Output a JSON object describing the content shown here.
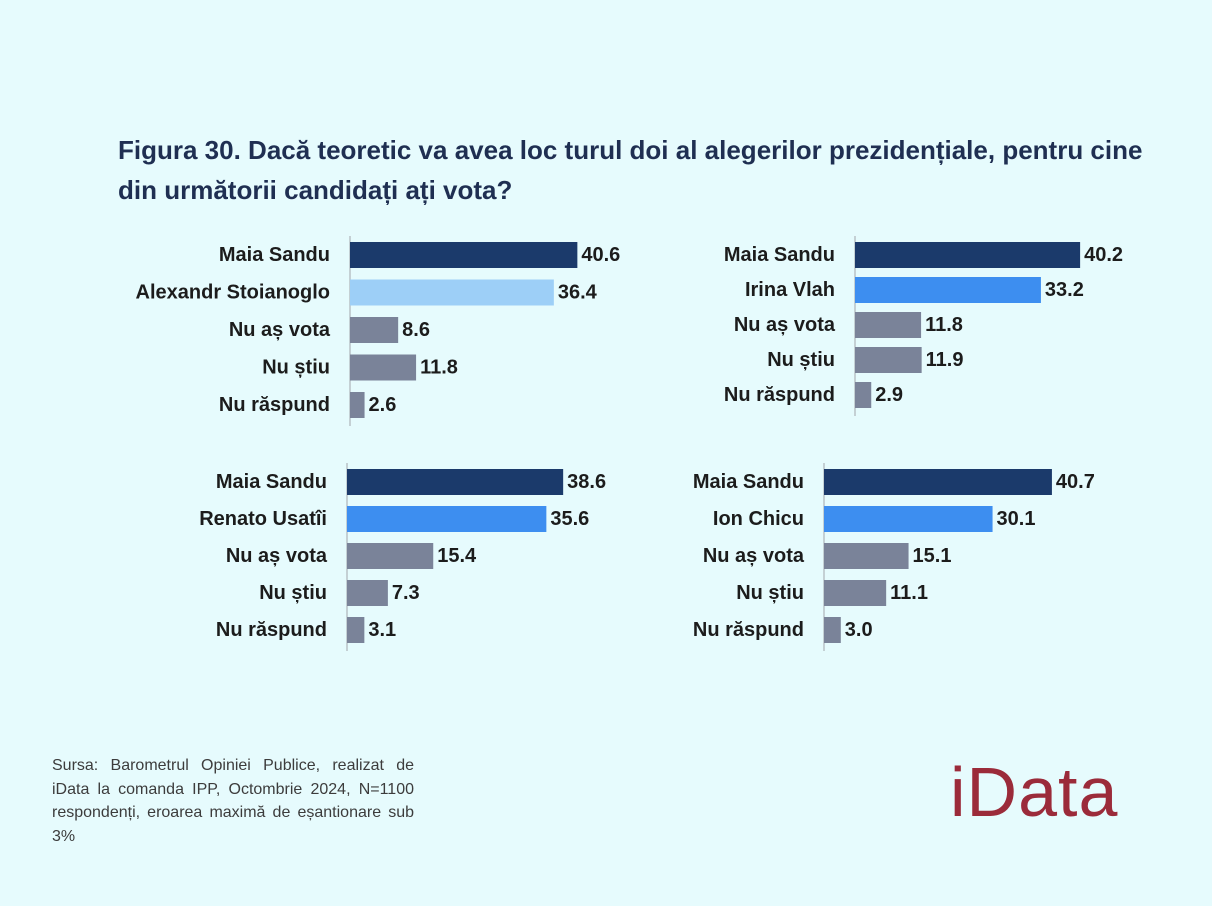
{
  "title": "Figura 30. Dacă teoretic va avea loc turul doi al alegerilor prezidențiale, pentru cine din următorii candidați ați vota?",
  "source_note": "Sursa: Barometrul Opiniei Publice, realizat de iData la comanda IPP, Octombrie 2024, N=1100 respondenți, eroarea maximă de eșantionare sub 3%",
  "logo": "iData",
  "colors": {
    "background": "#e6fbfd",
    "sandu": "#1b3a6b",
    "stoianoglo": "#9dcff7",
    "opponent": "#3d8ef0",
    "other": "#7a8399",
    "logo": "#9b2b3a"
  },
  "chart_data": [
    {
      "type": "bar",
      "orientation": "horizontal",
      "categories": [
        "Maia Sandu",
        "Alexandr Stoianoglo",
        "Nu aș vota",
        "Nu știu",
        "Nu răspund"
      ],
      "values": [
        40.6,
        36.4,
        8.6,
        11.8,
        2.6
      ],
      "value_labels": [
        "40.6",
        "36.4",
        "8.6",
        "11.8",
        "2.6"
      ],
      "bar_colors": [
        "#1b3a6b",
        "#9dcff7",
        "#7a8399",
        "#7a8399",
        "#7a8399"
      ]
    },
    {
      "type": "bar",
      "orientation": "horizontal",
      "categories": [
        "Maia Sandu",
        "Irina Vlah",
        "Nu aș vota",
        "Nu știu",
        "Nu răspund"
      ],
      "values": [
        40.2,
        33.2,
        11.8,
        11.9,
        2.9
      ],
      "value_labels": [
        "40.2",
        "33.2",
        "11.8",
        "11.9",
        "2.9"
      ],
      "bar_colors": [
        "#1b3a6b",
        "#3d8ef0",
        "#7a8399",
        "#7a8399",
        "#7a8399"
      ]
    },
    {
      "type": "bar",
      "orientation": "horizontal",
      "categories": [
        "Maia Sandu",
        "Renato Usatîi",
        "Nu aș vota",
        "Nu știu",
        "Nu răspund"
      ],
      "values": [
        38.6,
        35.6,
        15.4,
        7.3,
        3.1
      ],
      "value_labels": [
        "38.6",
        "35.6",
        "15.4",
        "7.3",
        "3.1"
      ],
      "bar_colors": [
        "#1b3a6b",
        "#3d8ef0",
        "#7a8399",
        "#7a8399",
        "#7a8399"
      ]
    },
    {
      "type": "bar",
      "orientation": "horizontal",
      "categories": [
        "Maia Sandu",
        "Ion Chicu",
        "Nu aș vota",
        "Nu știu",
        "Nu răspund"
      ],
      "values": [
        40.7,
        30.1,
        15.1,
        11.1,
        3.0
      ],
      "value_labels": [
        "40.7",
        "30.1",
        "15.1",
        "11.1",
        "3.0"
      ],
      "bar_colors": [
        "#1b3a6b",
        "#3d8ef0",
        "#7a8399",
        "#7a8399",
        "#7a8399"
      ]
    }
  ]
}
